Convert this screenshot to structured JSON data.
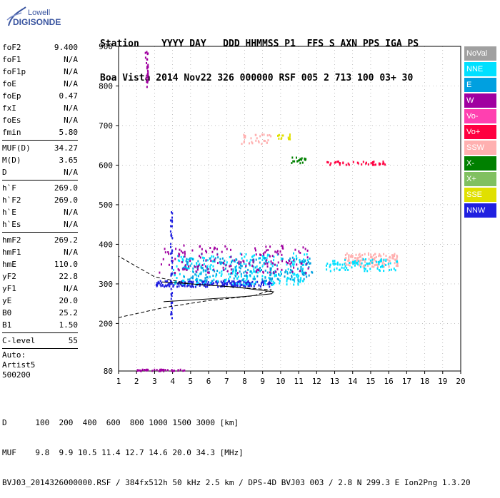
{
  "logo": {
    "line1": "Lowell",
    "line2": "DIGISONDE"
  },
  "header": {
    "row1": "Station    YYYY DAY   DDD HHMMSS P1  FFS S AXN PPS IGA PS",
    "row2": "Boa Vista 2014 Nov22 326 000000 RSF 005 2 713 100 03+ 30"
  },
  "params": [
    {
      "group": [
        {
          "k": "foF2",
          "v": "9.400"
        },
        {
          "k": "foF1",
          "v": "N/A"
        },
        {
          "k": "foF1p",
          "v": "N/A"
        },
        {
          "k": "foE",
          "v": "N/A"
        },
        {
          "k": "foEp",
          "v": "0.47"
        },
        {
          "k": "fxI",
          "v": "N/A"
        },
        {
          "k": "foEs",
          "v": "N/A"
        },
        {
          "k": "fmin",
          "v": "5.80"
        }
      ]
    },
    {
      "group": [
        {
          "k": "MUF(D)",
          "v": "34.27"
        },
        {
          "k": "M(D)",
          "v": "3.65"
        },
        {
          "k": "D",
          "v": "N/A"
        }
      ]
    },
    {
      "group": [
        {
          "k": "h`F",
          "v": "269.0"
        },
        {
          "k": "h`F2",
          "v": "269.0"
        },
        {
          "k": "h`E",
          "v": "N/A"
        },
        {
          "k": "h`Es",
          "v": "N/A"
        }
      ]
    },
    {
      "group": [
        {
          "k": "hmF2",
          "v": "269.2"
        },
        {
          "k": "hmF1",
          "v": "N/A"
        },
        {
          "k": "hmE",
          "v": "110.0"
        },
        {
          "k": "yF2",
          "v": "22.8"
        },
        {
          "k": "yF1",
          "v": "N/A"
        },
        {
          "k": "yE",
          "v": "20.0"
        },
        {
          "k": "B0",
          "v": "25.2"
        },
        {
          "k": "B1",
          "v": "1.50"
        }
      ]
    },
    {
      "group": [
        {
          "k": "C-level",
          "v": "55"
        }
      ]
    }
  ],
  "auto": {
    "line1": "Auto:",
    "line2": "Artist5",
    "line3": "500200"
  },
  "legend": [
    {
      "label": "NoVal",
      "color": "#a0a0a0"
    },
    {
      "label": "NNE",
      "color": "#00e0ff"
    },
    {
      "label": "E",
      "color": "#00a0e0"
    },
    {
      "label": "W",
      "color": "#a000a0"
    },
    {
      "label": "Vo-",
      "color": "#ff40b0"
    },
    {
      "label": "Vo+",
      "color": "#ff0040"
    },
    {
      "label": "SSW",
      "color": "#ffb0b0"
    },
    {
      "label": "X-",
      "color": "#008000"
    },
    {
      "label": "X+",
      "color": "#80c060"
    },
    {
      "label": "SSE",
      "color": "#e0e000"
    },
    {
      "label": "NNW",
      "color": "#2020e0"
    }
  ],
  "footer": {
    "row1": "D      100  200  400  600  800 1000 1500 3000 [km]",
    "row2": "MUF    9.8  9.9 10.5 11.4 12.7 14.6 20.0 34.3 [MHz]",
    "row3": "BVJ03_2014326000000.RSF / 384fx512h 50 kHz 2.5 km / DPS-4D BVJ03 003 / 2.8 N 299.3 E Ion2Png 1.3.20"
  },
  "chart_data": {
    "type": "scatter",
    "title": "",
    "xlabel": "",
    "ylabel": "",
    "xlim": [
      1,
      20
    ],
    "ylim": [
      80,
      900
    ],
    "xticks": [
      1,
      2,
      3,
      4,
      5,
      6,
      7,
      8,
      9,
      10,
      11,
      12,
      13,
      14,
      15,
      16,
      17,
      18,
      19,
      20
    ],
    "yticks": [
      200,
      300,
      400,
      500,
      600,
      700,
      800,
      900
    ],
    "ytick_labels": [
      "200",
      "300",
      "400",
      "500",
      "600",
      "700",
      "800",
      "900"
    ],
    "y_extra_label": "80",
    "clusters": [
      {
        "name": "low-trace-blue",
        "color": "#2020e0",
        "x": [
          3.0,
          9.5
        ],
        "y": [
          295,
          310
        ],
        "n": 220
      },
      {
        "name": "main-cyan",
        "color": "#00e0ff",
        "x": [
          4.0,
          11.5
        ],
        "y": [
          300,
          380
        ],
        "n": 260
      },
      {
        "name": "main-blue",
        "color": "#00a0e0",
        "x": [
          4.5,
          11.8
        ],
        "y": [
          310,
          370
        ],
        "n": 200
      },
      {
        "name": "main-purple",
        "color": "#a000a0",
        "x": [
          3.2,
          11.5
        ],
        "y": [
          330,
          400
        ],
        "n": 160
      },
      {
        "name": "right-pink",
        "color": "#ffb0b0",
        "x": [
          13.5,
          16.5
        ],
        "y": [
          345,
          380
        ],
        "n": 140
      },
      {
        "name": "right-cyan",
        "color": "#00e0ff",
        "x": [
          12.5,
          16.5
        ],
        "y": [
          335,
          365
        ],
        "n": 90
      },
      {
        "name": "second-hop-pink",
        "color": "#ffb0b0",
        "x": [
          7.8,
          9.5
        ],
        "y": [
          655,
          680
        ],
        "n": 30
      },
      {
        "name": "second-hop-red",
        "color": "#ff0040",
        "x": [
          12.5,
          15.8
        ],
        "y": [
          603,
          612
        ],
        "n": 40
      },
      {
        "name": "second-hop-green",
        "color": "#008000",
        "x": [
          10.5,
          11.4
        ],
        "y": [
          607,
          622
        ],
        "n": 18
      },
      {
        "name": "second-hop-yellow",
        "color": "#e0e000",
        "x": [
          9.8,
          10.5
        ],
        "y": [
          668,
          680
        ],
        "n": 14
      },
      {
        "name": "bottom-purple",
        "color": "#a000a0",
        "x": [
          1.8,
          4.8
        ],
        "y": [
          82,
          86
        ],
        "n": 40
      },
      {
        "name": "vertical-streak-w",
        "color": "#a000a0",
        "x": [
          2.45,
          2.6
        ],
        "y": [
          800,
          900
        ],
        "n": 30
      },
      {
        "name": "vertical-streak-nnw",
        "color": "#2020e0",
        "x": [
          3.85,
          3.95
        ],
        "y": [
          200,
          490
        ],
        "n": 50
      }
    ],
    "curve_solid": [
      [
        3.5,
        255
      ],
      [
        6.0,
        262
      ],
      [
        8.0,
        268
      ],
      [
        9.5,
        275
      ],
      [
        9.6,
        280
      ],
      [
        7.5,
        292
      ],
      [
        5.0,
        300
      ],
      [
        3.4,
        305
      ]
    ],
    "curve_dashed": [
      [
        1.0,
        215
      ],
      [
        2.0,
        225
      ],
      [
        3.5,
        240
      ],
      [
        6.0,
        258
      ],
      [
        8.5,
        270
      ],
      [
        9.5,
        285
      ],
      [
        5.0,
        300
      ],
      [
        3.0,
        318
      ],
      [
        1.0,
        370
      ]
    ]
  }
}
